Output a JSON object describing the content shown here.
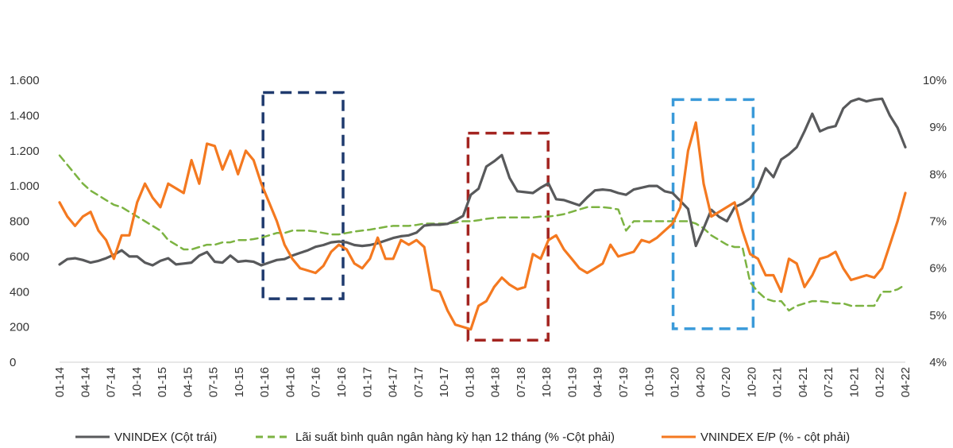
{
  "chart_data": {
    "type": "line",
    "title": "",
    "x_tick_labels": [
      "01-14",
      "04-14",
      "07-14",
      "10-14",
      "01-15",
      "04-15",
      "07-15",
      "10-15",
      "01-16",
      "04-16",
      "07-16",
      "10-16",
      "01-17",
      "04-17",
      "07-17",
      "10-17",
      "01-18",
      "04-18",
      "07-18",
      "10-18",
      "01-19",
      "04-19",
      "07-19",
      "10-19",
      "01-20",
      "04-20",
      "07-20",
      "10-20",
      "01-21",
      "04-21",
      "07-21",
      "10-21",
      "01-22",
      "04-22"
    ],
    "left_axis": {
      "min": 0,
      "max": 1600,
      "ticks": [
        0,
        200,
        400,
        600,
        800,
        1000,
        1200,
        1400,
        1600
      ],
      "tick_labels": [
        "0",
        "200",
        "400",
        "600",
        "800",
        "1.000",
        "1.200",
        "1.400",
        "1.600"
      ]
    },
    "right_axis": {
      "min": 4,
      "max": 10,
      "ticks": [
        4,
        5,
        6,
        7,
        8,
        9,
        10
      ],
      "tick_labels": [
        "4%",
        "5%",
        "6%",
        "7%",
        "8%",
        "9%",
        "10%"
      ]
    },
    "series": [
      {
        "name": "VNINDEX (Cột trái)",
        "axis": "left",
        "style": "solid",
        "color": "#58595b",
        "values": [
          555,
          585,
          590,
          580,
          565,
          575,
          590,
          610,
          635,
          600,
          600,
          565,
          550,
          575,
          590,
          555,
          560,
          565,
          605,
          625,
          570,
          565,
          605,
          570,
          575,
          570,
          550,
          565,
          580,
          585,
          605,
          620,
          635,
          655,
          665,
          680,
          685,
          680,
          665,
          660,
          665,
          675,
          690,
          705,
          715,
          720,
          735,
          775,
          780,
          780,
          785,
          805,
          830,
          950,
          985,
          1110,
          1140,
          1175,
          1045,
          970,
          965,
          960,
          990,
          1015,
          925,
          920,
          905,
          890,
          935,
          975,
          980,
          975,
          960,
          950,
          980,
          990,
          1000,
          1000,
          970,
          960,
          915,
          870,
          660,
          760,
          865,
          825,
          800,
          880,
          900,
          930,
          990,
          1100,
          1050,
          1150,
          1180,
          1220,
          1310,
          1410,
          1310,
          1330,
          1340,
          1440,
          1480,
          1495,
          1480,
          1490,
          1495,
          1400,
          1330,
          1220
        ]
      },
      {
        "name": "Lãi suất bình quân ngân hàng kỳ hạn 12 tháng (% -Cột phải)",
        "axis": "right",
        "style": "dashed",
        "color": "#7cb342",
        "values": [
          8.4,
          8.2,
          8.0,
          7.8,
          7.65,
          7.55,
          7.45,
          7.35,
          7.3,
          7.2,
          7.1,
          7.0,
          6.9,
          6.8,
          6.6,
          6.5,
          6.4,
          6.4,
          6.45,
          6.5,
          6.5,
          6.55,
          6.55,
          6.6,
          6.6,
          6.62,
          6.65,
          6.7,
          6.75,
          6.75,
          6.8,
          6.8,
          6.8,
          6.78,
          6.75,
          6.72,
          6.72,
          6.75,
          6.78,
          6.8,
          6.82,
          6.85,
          6.88,
          6.9,
          6.9,
          6.9,
          6.92,
          6.95,
          6.95,
          6.95,
          6.95,
          6.97,
          7.0,
          7.0,
          7.02,
          7.05,
          7.07,
          7.08,
          7.08,
          7.08,
          7.08,
          7.08,
          7.1,
          7.1,
          7.12,
          7.15,
          7.2,
          7.25,
          7.3,
          7.3,
          7.3,
          7.28,
          7.25,
          6.8,
          7.0,
          7.0,
          7.0,
          7.0,
          7.0,
          7.0,
          7.0,
          7.0,
          6.95,
          6.85,
          6.7,
          6.6,
          6.5,
          6.45,
          6.45,
          5.7,
          5.5,
          5.35,
          5.3,
          5.3,
          5.1,
          5.2,
          5.25,
          5.3,
          5.3,
          5.28,
          5.25,
          5.25,
          5.2,
          5.2,
          5.2,
          5.2,
          5.5,
          5.5,
          5.55,
          5.65
        ]
      },
      {
        "name": "VNINDEX E/P (% - cột phải)",
        "axis": "right",
        "style": "solid",
        "color": "#f47920",
        "values": [
          7.4,
          7.1,
          6.9,
          7.1,
          7.2,
          6.8,
          6.6,
          6.2,
          6.7,
          6.7,
          7.4,
          7.8,
          7.5,
          7.3,
          7.8,
          7.7,
          7.6,
          8.3,
          7.8,
          8.65,
          8.6,
          8.1,
          8.5,
          8.0,
          8.5,
          8.3,
          7.8,
          7.4,
          7.0,
          6.5,
          6.2,
          6.0,
          5.95,
          5.9,
          6.05,
          6.35,
          6.5,
          6.4,
          6.1,
          6.0,
          6.2,
          6.65,
          6.2,
          6.2,
          6.6,
          6.5,
          6.6,
          6.45,
          5.55,
          5.5,
          5.1,
          4.8,
          4.75,
          4.7,
          5.2,
          5.3,
          5.6,
          5.8,
          5.65,
          5.55,
          5.6,
          6.3,
          6.2,
          6.6,
          6.7,
          6.4,
          6.2,
          6.0,
          5.9,
          6.0,
          6.1,
          6.5,
          6.25,
          6.3,
          6.35,
          6.6,
          6.55,
          6.65,
          6.8,
          6.95,
          7.3,
          8.5,
          9.1,
          7.8,
          7.1,
          7.2,
          7.3,
          7.4,
          6.8,
          6.3,
          6.2,
          5.85,
          5.85,
          5.5,
          6.2,
          6.1,
          5.6,
          5.85,
          6.2,
          6.25,
          6.35,
          6.0,
          5.75,
          5.8,
          5.85,
          5.8,
          6.0,
          6.5,
          7.0,
          7.6
        ]
      }
    ],
    "annotations": [
      {
        "type": "dashed-rectangle",
        "color": "#1f3a6e",
        "x_from": "01-16",
        "x_to": "10-16",
        "y_from": 360,
        "y_to": 1530
      },
      {
        "type": "dashed-rectangle",
        "color": "#a32420",
        "x_from": "01-18",
        "x_to": "10-18",
        "y_from": 125,
        "y_to": 1300
      },
      {
        "type": "dashed-rectangle",
        "color": "#3a9ad9",
        "x_from": "01-20",
        "x_to": "10-20",
        "y_from": 190,
        "y_to": 1490
      }
    ],
    "legend": [
      {
        "label": "VNINDEX (Cột trái)",
        "style": "solid",
        "color": "#58595b"
      },
      {
        "label": "Lãi suất bình quân ngân hàng kỳ hạn 12 tháng (% -Cột phải)",
        "style": "dashed",
        "color": "#7cb342"
      },
      {
        "label": "VNINDEX E/P (% - cột phải)",
        "style": "solid",
        "color": "#f47920"
      }
    ],
    "legend_position": "bottom"
  }
}
